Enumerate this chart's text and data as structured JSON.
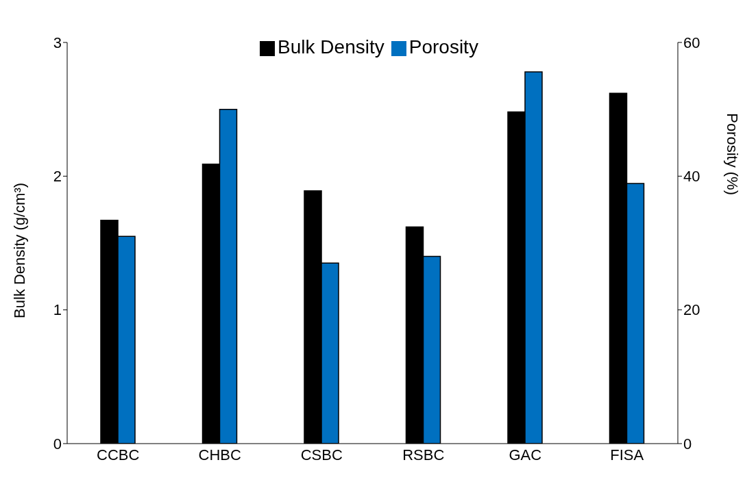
{
  "chart_data": {
    "type": "bar",
    "categories": [
      "CCBC",
      "CHBC",
      "CSBC",
      "RSBC",
      "GAC",
      "FISA"
    ],
    "ylabel": "Bulk Density (g/cm³)",
    "y2label": "Porosity (%)",
    "series": [
      {
        "name": "Bulk Density",
        "color": "#000000",
        "values": [
          1.67,
          2.09,
          1.89,
          1.62,
          2.48,
          2.62
        ]
      },
      {
        "name": "Porosity",
        "color": "#0070c0",
        "axis": "y2",
        "values": [
          31,
          50,
          27,
          28,
          55.6,
          38.9
        ]
      }
    ],
    "ylim": [
      0,
      3
    ],
    "yticks": [
      0,
      1,
      2,
      3
    ],
    "y2lim": [
      0,
      60
    ],
    "y2ticks": [
      0,
      20,
      40,
      60
    ],
    "grid": false,
    "legend": "top"
  }
}
